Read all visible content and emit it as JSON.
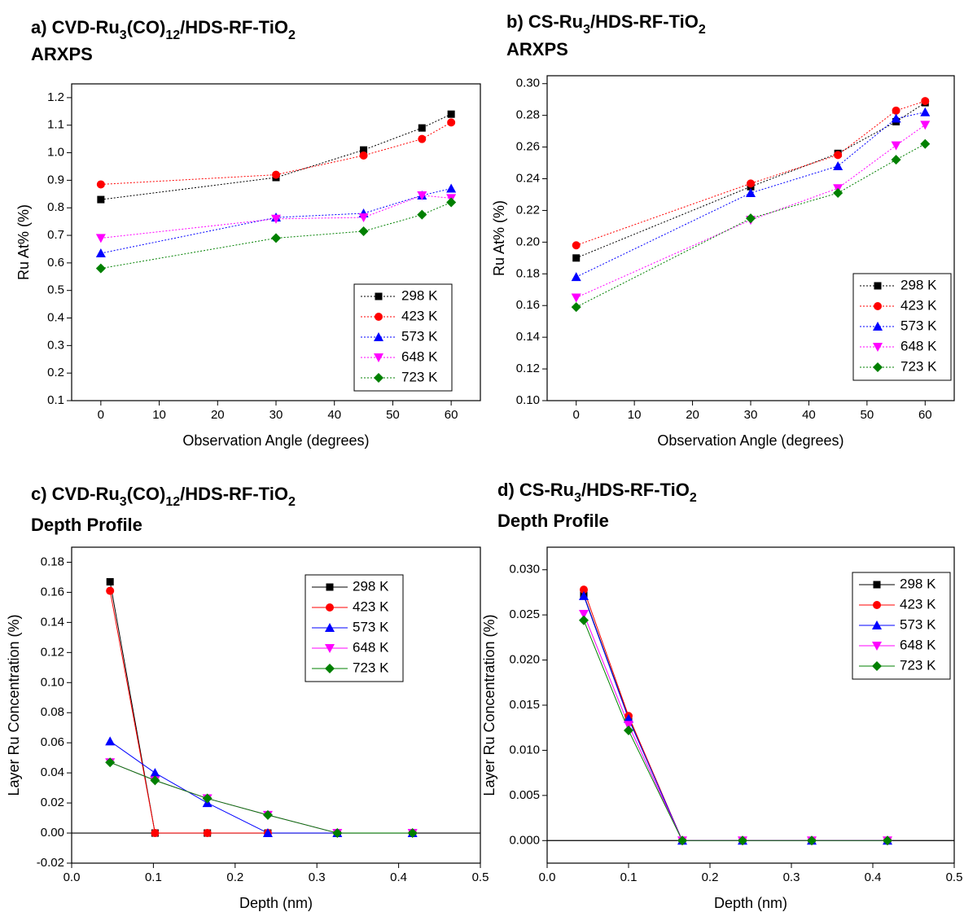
{
  "chart_data": [
    {
      "type": "line",
      "title": "a) CVD-Ru3(CO)12/HDS-RF-TiO2",
      "subtitle": "ARXPS",
      "x_label": "Observation Angle (degrees)",
      "y_label": "Ru At% (%)",
      "x": [
        0,
        30,
        45,
        55,
        60
      ],
      "series": [
        {
          "name": "298 K",
          "color": "#000000",
          "marker": "square",
          "values": [
            0.83,
            0.91,
            1.01,
            1.09,
            1.14
          ]
        },
        {
          "name": "423 K",
          "color": "#ff0000",
          "marker": "circle",
          "values": [
            0.885,
            0.92,
            0.99,
            1.05,
            1.11
          ]
        },
        {
          "name": "573 K",
          "color": "#0000ff",
          "marker": "triangle-up",
          "values": [
            0.635,
            0.765,
            0.78,
            0.845,
            0.87
          ]
        },
        {
          "name": "648 K",
          "color": "#ff00ff",
          "marker": "triangle-down",
          "values": [
            0.69,
            0.76,
            0.765,
            0.845,
            0.835
          ]
        },
        {
          "name": "723 K",
          "color": "#008000",
          "marker": "diamond",
          "values": [
            0.58,
            0.69,
            0.715,
            0.775,
            0.82
          ]
        }
      ],
      "line_style": "dotted",
      "legend": "lower right",
      "zero_line": false,
      "xlim": [
        -5,
        65
      ],
      "xticks": [
        0,
        10,
        20,
        30,
        40,
        50,
        60
      ],
      "ylim": [
        0.1,
        1.25
      ],
      "yticks": [
        0.1,
        0.2,
        0.3,
        0.4,
        0.5,
        0.6,
        0.7,
        0.8,
        0.9,
        {
          "value": 1,
          "label": "1.0"
        },
        1.1,
        1.2
      ]
    },
    {
      "type": "line",
      "title": "b) CS-Ru3/HDS-RF-TiO2",
      "subtitle": "ARXPS",
      "x_label": "Observation Angle (degrees)",
      "y_label": "Ru At% (%)",
      "x": [
        0,
        30,
        45,
        55,
        60
      ],
      "series": [
        {
          "name": "298 K",
          "color": "#000000",
          "marker": "square",
          "values": [
            0.19,
            0.235,
            0.256,
            0.276,
            0.288
          ]
        },
        {
          "name": "423 K",
          "color": "#ff0000",
          "marker": "circle",
          "values": [
            0.198,
            0.237,
            0.255,
            0.283,
            0.289
          ]
        },
        {
          "name": "573 K",
          "color": "#0000ff",
          "marker": "triangle-up",
          "values": [
            0.178,
            0.231,
            0.248,
            0.278,
            0.282
          ]
        },
        {
          "name": "648 K",
          "color": "#ff00ff",
          "marker": "triangle-down",
          "values": [
            0.165,
            0.214,
            0.234,
            0.261,
            0.274
          ]
        },
        {
          "name": "723 K",
          "color": "#008000",
          "marker": "diamond",
          "values": [
            0.159,
            0.215,
            0.231,
            0.252,
            0.262
          ]
        }
      ],
      "line_style": "dotted",
      "legend": "lower right",
      "zero_line": false,
      "xlim": [
        -5,
        65
      ],
      "xticks": [
        0,
        10,
        20,
        30,
        40,
        50,
        60
      ],
      "ylim": [
        0.1,
        0.305
      ],
      "yticks": [
        {
          "value": 0.1,
          "label": "0.10"
        },
        0.12,
        0.14,
        0.16,
        0.18,
        {
          "value": 0.2,
          "label": "0.20"
        },
        0.22,
        0.24,
        0.26,
        0.28,
        {
          "value": 0.3,
          "label": "0.30"
        }
      ]
    },
    {
      "type": "line",
      "title": "c) CVD-Ru3(CO)12/HDS-RF-TiO2",
      "subtitle": "Depth Profile",
      "x_label": "Depth (nm)",
      "y_label": "Layer Ru Concentration (%)",
      "x": [
        0.047,
        0.102,
        0.166,
        0.24,
        0.325,
        0.417
      ],
      "series": [
        {
          "name": "298 K",
          "color": "#000000",
          "marker": "square",
          "values": [
            0.167,
            0,
            0,
            0,
            0,
            0
          ]
        },
        {
          "name": "423 K",
          "color": "#ff0000",
          "marker": "circle",
          "values": [
            0.161,
            0,
            0,
            0,
            0,
            0
          ]
        },
        {
          "name": "573 K",
          "color": "#0000ff",
          "marker": "triangle-up",
          "values": [
            0.061,
            0.04,
            0.02,
            0,
            0,
            0
          ]
        },
        {
          "name": "648 K",
          "color": "#ff00ff",
          "marker": "triangle-down",
          "values": [
            0.047,
            0.035,
            0.023,
            0.012,
            0,
            0
          ]
        },
        {
          "name": "723 K",
          "color": "#008000",
          "marker": "diamond",
          "values": [
            0.047,
            0.035,
            0.023,
            0.012,
            0,
            0
          ]
        }
      ],
      "line_style": "solid",
      "legend": "upper right",
      "zero_line": true,
      "xlim": [
        0,
        0.5
      ],
      "xticks": [
        {
          "value": 0,
          "label": "0.0"
        },
        0.1,
        0.2,
        0.3,
        0.4,
        0.5
      ],
      "ylim": [
        -0.02,
        0.19
      ],
      "yticks": [
        -0.02,
        {
          "value": 0,
          "label": "0.00"
        },
        0.02,
        0.04,
        0.06,
        0.08,
        {
          "value": 0.1,
          "label": "0.10"
        },
        0.12,
        0.14,
        0.16,
        0.18
      ]
    },
    {
      "type": "line",
      "title": "d) CS-Ru3/HDS-RF-TiO2",
      "subtitle": "Depth Profile",
      "x_label": "Depth (nm)",
      "y_label": "Layer Ru Concentration (%)",
      "x": [
        0.045,
        0.1,
        0.166,
        0.24,
        0.325,
        0.418
      ],
      "series": [
        {
          "name": "298 K",
          "color": "#000000",
          "marker": "square",
          "values": [
            0.0272,
            0.0136,
            0,
            0,
            0,
            0
          ]
        },
        {
          "name": "423 K",
          "color": "#ff0000",
          "marker": "circle",
          "values": [
            0.0278,
            0.0138,
            0,
            0,
            0,
            0
          ]
        },
        {
          "name": "573 K",
          "color": "#0000ff",
          "marker": "triangle-up",
          "values": [
            0.0271,
            0.0135,
            0,
            0,
            0,
            0
          ]
        },
        {
          "name": "648 K",
          "color": "#ff00ff",
          "marker": "triangle-down",
          "values": [
            0.0251,
            0.0128,
            0,
            0,
            0,
            0
          ]
        },
        {
          "name": "723 K",
          "color": "#008000",
          "marker": "diamond",
          "values": [
            0.0244,
            0.0122,
            0,
            0,
            0,
            0
          ]
        }
      ],
      "line_style": "solid",
      "legend": "upper right",
      "zero_line": true,
      "xlim": [
        0,
        0.5
      ],
      "xticks": [
        {
          "value": 0,
          "label": "0.0"
        },
        0.1,
        0.2,
        0.3,
        0.4,
        0.5
      ],
      "ylim": [
        -0.0025,
        0.0325
      ],
      "yticks": [
        {
          "value": 0,
          "label": "0.000"
        },
        0.005,
        {
          "value": 0.01,
          "label": "0.010"
        },
        0.015,
        {
          "value": 0.02,
          "label": "0.020"
        },
        0.025,
        {
          "value": 0.03,
          "label": "0.030"
        }
      ]
    }
  ]
}
